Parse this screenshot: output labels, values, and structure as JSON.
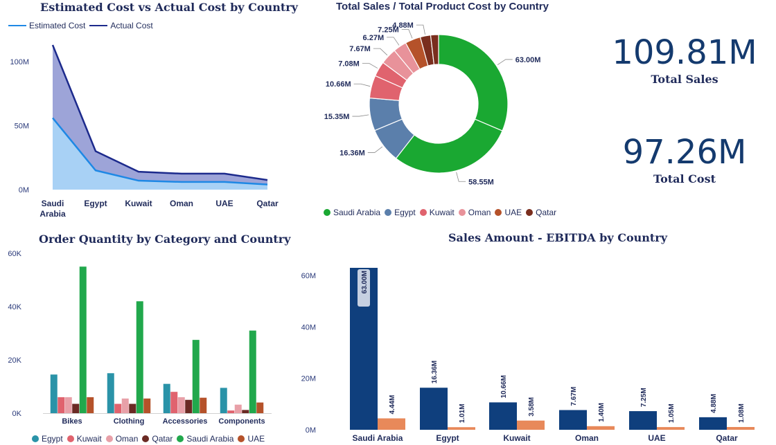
{
  "chart_data": [
    {
      "id": "est_vs_actual",
      "type": "area",
      "title": "Estimated Cost vs Actual Cost by Country",
      "categories": [
        "Saudi Arabia",
        "Egypt",
        "Kuwait",
        "Oman",
        "UAE",
        "Qatar"
      ],
      "category_lines": [
        [
          "Saudi",
          "Arabia"
        ],
        [
          "Egypt"
        ],
        [
          "Kuwait"
        ],
        [
          "Oman"
        ],
        [
          "UAE"
        ],
        [
          "Qatar"
        ]
      ],
      "series": [
        {
          "name": "Estimated Cost",
          "values": [
            56,
            15,
            7,
            6,
            6,
            4
          ],
          "color": "#1e88e5",
          "fill": "#a8d1f5"
        },
        {
          "name": "Actual Cost",
          "values": [
            113,
            30,
            14,
            12.5,
            12.5,
            7.5
          ],
          "color": "#1c2a8c",
          "fill": "#9da4d8"
        }
      ],
      "ylim": [
        0,
        113
      ],
      "yticks": [
        {
          "v": 0,
          "label": "0M"
        },
        {
          "v": 50,
          "label": "50M"
        },
        {
          "v": 100,
          "label": "100M"
        }
      ],
      "grid": false,
      "legend": "top-left"
    },
    {
      "id": "donut",
      "type": "pie",
      "title": "Total Sales / Total Product Cost by Country",
      "slices": [
        {
          "label": "63.00M",
          "value": 63.0,
          "color": "#1aa832"
        },
        {
          "label": "58.55M",
          "value": 58.55,
          "color": "#1aa832"
        },
        {
          "label": "16.36M",
          "value": 16.36,
          "color": "#5b7fab"
        },
        {
          "label": "15.35M",
          "value": 15.35,
          "color": "#5b7fab"
        },
        {
          "label": "10.66M",
          "value": 10.66,
          "color": "#e0636e"
        },
        {
          "label": "7.08M",
          "value": 7.08,
          "color": "#e0636e"
        },
        {
          "label": "7.67M",
          "value": 7.67,
          "color": "#e8929a"
        },
        {
          "label": "6.27M",
          "value": 6.27,
          "color": "#e8929a"
        },
        {
          "label": "7.25M",
          "value": 7.25,
          "color": "#b5522a"
        },
        {
          "label": "4.88M",
          "value": 4.88,
          "color": "#7a2e1e"
        },
        {
          "label": "",
          "value": 3.7,
          "color": "#7a2e1e"
        }
      ],
      "legend_items": [
        {
          "name": "Saudi Arabia",
          "color": "#1aa832"
        },
        {
          "name": "Egypt",
          "color": "#5b7fab"
        },
        {
          "name": "Kuwait",
          "color": "#e0636e"
        },
        {
          "name": "Oman",
          "color": "#e8929a"
        },
        {
          "name": "UAE",
          "color": "#b5522a"
        },
        {
          "name": "Qatar",
          "color": "#7a2e1e"
        }
      ],
      "legend": "bottom"
    },
    {
      "id": "order_qty",
      "type": "bar",
      "title": "Order Quantity by Category and Country",
      "categories": [
        "Bikes",
        "Clothing",
        "Accessories",
        "Components"
      ],
      "series": [
        {
          "name": "Egypt",
          "color": "#2a93a8",
          "values": [
            14500,
            15000,
            11000,
            9500
          ]
        },
        {
          "name": "Kuwait",
          "color": "#e0636e",
          "values": [
            6000,
            3500,
            8000,
            1000
          ]
        },
        {
          "name": "Oman",
          "color": "#e8a0a8",
          "values": [
            6000,
            5500,
            6000,
            3200
          ]
        },
        {
          "name": "Qatar",
          "color": "#6b2a24",
          "values": [
            3500,
            3500,
            5000,
            1200
          ]
        },
        {
          "name": "Saudi Arabia",
          "color": "#21a84c",
          "values": [
            55000,
            42000,
            27500,
            31000
          ]
        },
        {
          "name": "UAE",
          "color": "#b5522a",
          "values": [
            6000,
            5500,
            5800,
            4000
          ]
        }
      ],
      "ylim": [
        0,
        60000
      ],
      "yticks": [
        {
          "v": 0,
          "label": "0K"
        },
        {
          "v": 20000,
          "label": "20K"
        },
        {
          "v": 40000,
          "label": "40K"
        },
        {
          "v": 60000,
          "label": "60K"
        }
      ],
      "grid": false,
      "legend": "bottom"
    },
    {
      "id": "sales_ebitda",
      "type": "bar",
      "title": "Sales Amount - EBITDA by Country",
      "categories": [
        "Saudi Arabia",
        "Egypt",
        "Kuwait",
        "Oman",
        "UAE",
        "Qatar"
      ],
      "series": [
        {
          "name": "Sales Amount",
          "color": "#0f3f7d",
          "values": [
            63.0,
            16.36,
            10.66,
            7.67,
            7.25,
            4.88
          ],
          "labels": [
            "63.00M",
            "16.36M",
            "10.66M",
            "7.67M",
            "7.25M",
            "4.88M"
          ]
        },
        {
          "name": "EBITDA",
          "color": "#e8895a",
          "values": [
            4.44,
            1.01,
            3.58,
            1.4,
            1.05,
            1.08
          ],
          "labels": [
            "4.44M",
            "1.01M",
            "3.58M",
            "1.40M",
            "1.05M",
            "1.08M"
          ]
        }
      ],
      "ylim": [
        0,
        63
      ],
      "yticks": [
        {
          "v": 0,
          "label": "0M"
        },
        {
          "v": 20,
          "label": "20M"
        },
        {
          "v": 40,
          "label": "40M"
        },
        {
          "v": 60,
          "label": "60M"
        }
      ],
      "grid": false
    }
  ],
  "kpis": {
    "total_sales": {
      "value": "109.81M",
      "label": "Total Sales"
    },
    "total_cost": {
      "value": "97.26M",
      "label": "Total Cost"
    }
  }
}
